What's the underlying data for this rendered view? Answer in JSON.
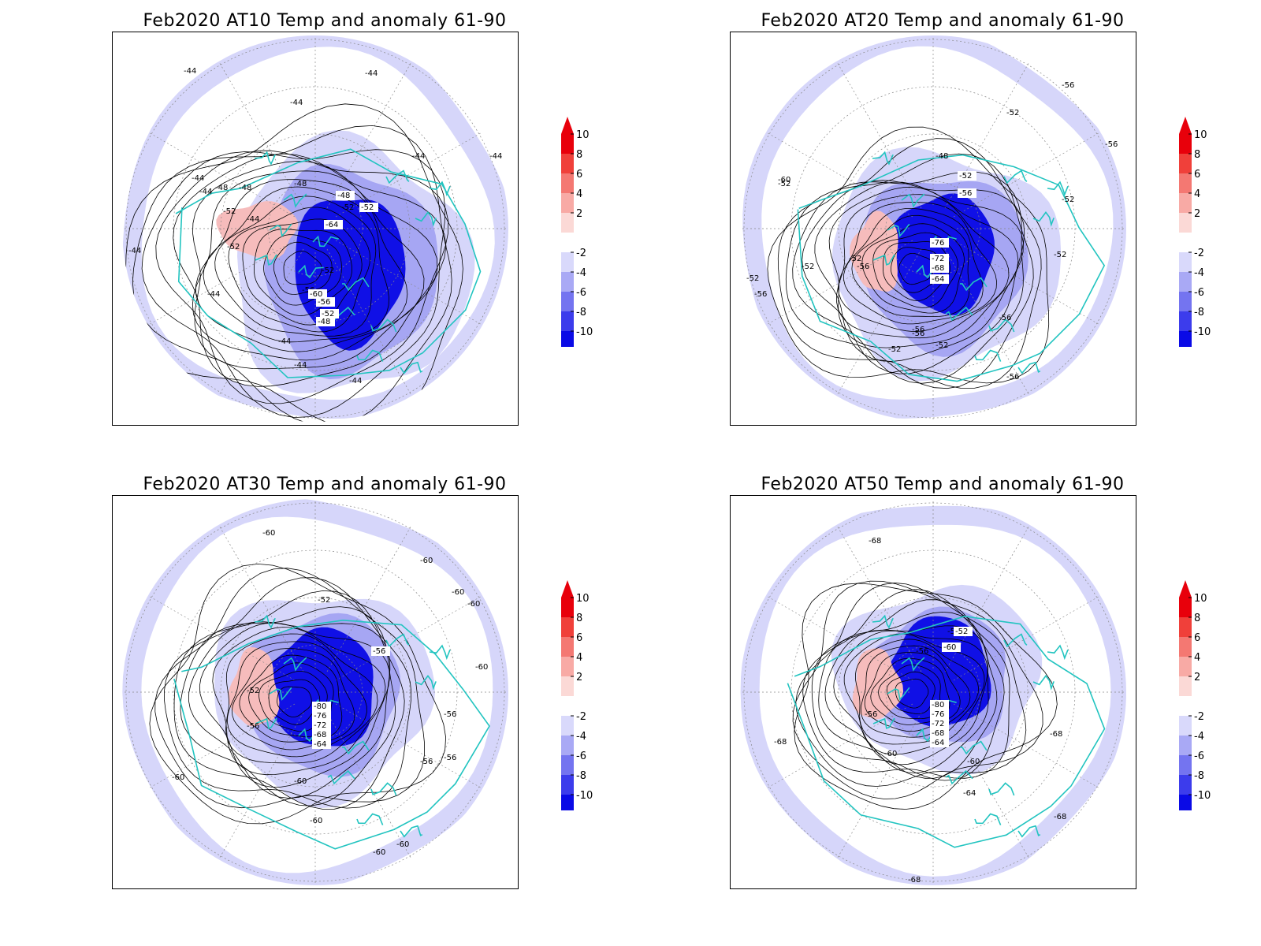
{
  "panels": [
    {
      "title": "Feb2020 AT10 Temp and anomaly 61-90",
      "contour_labels": [
        "-44",
        "-44",
        "-44",
        "-44",
        "-44",
        "-44",
        "-44",
        "-44",
        "-44",
        "-44",
        "-44",
        "-44",
        "-44",
        "-48",
        "-48",
        "-48",
        "-48",
        "-52",
        "-52",
        "-52",
        "-52",
        "-56",
        "-60",
        "-64"
      ],
      "labeled_boxes": [
        "-52",
        "-64",
        "-48",
        "-60",
        "-56",
        "-52",
        "-48"
      ]
    },
    {
      "title": "Feb2020 AT20 Temp and anomaly 61-90",
      "contour_labels": [
        "-56",
        "-56",
        "-52",
        "-52",
        "-52",
        "-52",
        "-52",
        "-52",
        "-52",
        "-56",
        "-56",
        "-56",
        "-56",
        "-56",
        "-52",
        "-52",
        "-56",
        "-60",
        "-48"
      ],
      "labeled_boxes": [
        "-52",
        "-56",
        "-76",
        "-72",
        "-68",
        "-64"
      ]
    },
    {
      "title": "Feb2020 AT30 Temp and anomaly 61-90",
      "contour_labels": [
        "-60",
        "-60",
        "-60",
        "-60",
        "-60",
        "-52",
        "-52",
        "-56",
        "-56",
        "-56",
        "-56",
        "-60",
        "-60",
        "-60",
        "-60",
        "-60"
      ],
      "labeled_boxes": [
        "-56",
        "-80",
        "-76",
        "-72",
        "-68",
        "-64"
      ]
    },
    {
      "title": "Feb2020 AT50 Temp and anomaly 61-90",
      "contour_labels": [
        "-68",
        "-68",
        "-68",
        "-68",
        "-68",
        "-60",
        "-60",
        "-64",
        "-52",
        "-56",
        "-56"
      ],
      "labeled_boxes": [
        "-52",
        "-60",
        "-80",
        "-76",
        "-72",
        "-68",
        "-64"
      ]
    }
  ],
  "colorbar": {
    "labels": [
      "10",
      "8",
      "6",
      "4",
      "2",
      "-2",
      "-4",
      "-6",
      "-8",
      "-10"
    ],
    "colors": [
      "#e8000b",
      "#f0403a",
      "#f47872",
      "#f8aaa5",
      "#fbd9d6",
      "#ffffff",
      "#d9d9fb",
      "#a9a9f5",
      "#7474f0",
      "#3c3cec",
      "#0a0ae6"
    ],
    "top_arrow": "#e8000b",
    "bottom_arrow": "#0a0ae6"
  },
  "colors": {
    "coastline": "#22c4c0",
    "contour": "#000000",
    "neg_anomaly_light": "#d6d6fa",
    "neg_anomaly_mid": "#a6a6f3",
    "neg_anomaly_deep": "#1010e6",
    "pos_anomaly": "#f6bcbc"
  }
}
